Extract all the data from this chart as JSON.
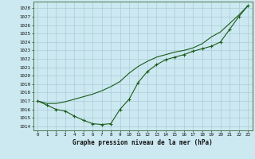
{
  "title": "Graphe pression niveau de la mer (hPa)",
  "background_color": "#cce8f0",
  "grid_color": "#aaccd8",
  "line_color": "#1a5c1a",
  "xlim": [
    -0.5,
    23.5
  ],
  "ylim": [
    1013.5,
    1028.8
  ],
  "xticks": [
    0,
    1,
    2,
    3,
    4,
    5,
    6,
    7,
    8,
    9,
    10,
    11,
    12,
    13,
    14,
    15,
    16,
    17,
    18,
    19,
    20,
    21,
    22,
    23
  ],
  "yticks": [
    1014,
    1015,
    1016,
    1017,
    1018,
    1019,
    1020,
    1021,
    1022,
    1023,
    1024,
    1025,
    1026,
    1027,
    1028
  ],
  "line1_x": [
    0,
    1,
    2,
    3,
    4,
    5,
    6,
    7,
    8,
    9,
    10,
    11,
    12,
    13,
    14,
    15,
    16,
    17,
    18,
    19,
    20,
    21,
    22,
    23
  ],
  "line1_y": [
    1017.0,
    1016.7,
    1016.7,
    1016.9,
    1017.2,
    1017.5,
    1017.8,
    1018.2,
    1018.7,
    1019.3,
    1020.3,
    1021.1,
    1021.7,
    1022.2,
    1022.5,
    1022.8,
    1023.0,
    1023.3,
    1023.8,
    1024.6,
    1025.2,
    1026.2,
    1027.2,
    1028.3
  ],
  "line2_x": [
    0,
    1,
    2,
    3,
    4,
    5,
    6,
    7,
    8,
    9,
    10,
    11,
    12,
    13,
    14,
    15,
    16,
    17,
    18,
    19,
    20,
    21,
    22,
    23
  ],
  "line2_y": [
    1017.0,
    1016.5,
    1016.0,
    1015.8,
    1015.2,
    1014.7,
    1014.3,
    1014.2,
    1014.3,
    1016.0,
    1017.2,
    1019.2,
    1020.5,
    1021.3,
    1021.9,
    1022.2,
    1022.5,
    1022.9,
    1023.2,
    1023.5,
    1024.0,
    1025.5,
    1027.0,
    1028.3
  ],
  "marker_x": [
    0,
    1,
    2,
    3,
    4,
    5,
    6,
    7,
    8,
    9,
    10,
    11,
    12,
    13,
    14,
    15,
    16,
    17,
    18,
    19,
    20,
    21,
    22,
    23
  ],
  "title_fontsize": 5.5,
  "tick_fontsize": 4.2
}
